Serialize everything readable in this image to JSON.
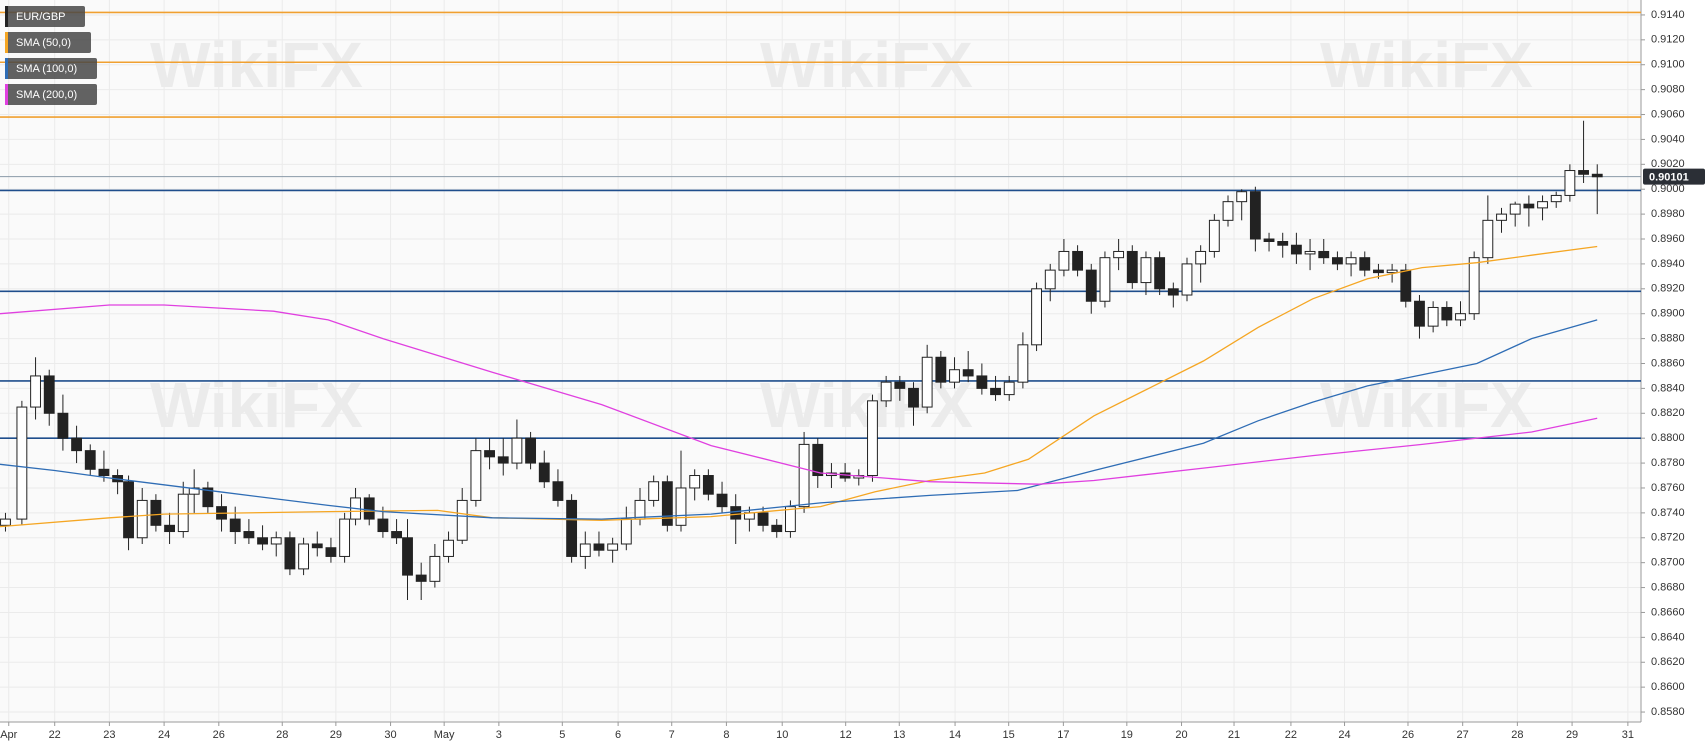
{
  "chart_data": {
    "type": "candlestick",
    "watermark": "WikiFX",
    "xlim": [
      0,
      30
    ],
    "xticks": [
      {
        "value": 0.16,
        "label": "Apr"
      },
      {
        "value": 1.0,
        "label": "22"
      },
      {
        "value": 2.0,
        "label": "23"
      },
      {
        "value": 3.0,
        "label": "24"
      },
      {
        "value": 4.0,
        "label": "26"
      },
      {
        "value": 5.16,
        "label": "28"
      },
      {
        "value": 6.14,
        "label": "29"
      },
      {
        "value": 7.14,
        "label": "30"
      },
      {
        "value": 8.12,
        "label": "May"
      },
      {
        "value": 9.12,
        "label": "3"
      },
      {
        "value": 10.28,
        "label": "5"
      },
      {
        "value": 11.3,
        "label": "6"
      },
      {
        "value": 12.28,
        "label": "7"
      },
      {
        "value": 13.28,
        "label": "8"
      },
      {
        "value": 14.3,
        "label": "10"
      },
      {
        "value": 15.46,
        "label": "12"
      },
      {
        "value": 16.44,
        "label": "13"
      },
      {
        "value": 17.46,
        "label": "14"
      },
      {
        "value": 18.44,
        "label": "15"
      },
      {
        "value": 19.44,
        "label": "17"
      },
      {
        "value": 20.6,
        "label": "19"
      },
      {
        "value": 21.6,
        "label": "20"
      },
      {
        "value": 22.56,
        "label": "21"
      },
      {
        "value": 23.6,
        "label": "22"
      },
      {
        "value": 24.58,
        "label": "24"
      },
      {
        "value": 25.74,
        "label": "26"
      },
      {
        "value": 26.74,
        "label": "27"
      },
      {
        "value": 27.74,
        "label": "28"
      },
      {
        "value": 28.74,
        "label": "29"
      },
      {
        "value": 29.76,
        "label": "31"
      }
    ],
    "ylim": [
      0.8572,
      0.9152
    ],
    "yticks": [
      {
        "value": 0.858,
        "label": "0.8580"
      },
      {
        "value": 0.86,
        "label": "0.8600"
      },
      {
        "value": 0.862,
        "label": "0.8620"
      },
      {
        "value": 0.864,
        "label": "0.8640"
      },
      {
        "value": 0.866,
        "label": "0.8660"
      },
      {
        "value": 0.868,
        "label": "0.8680"
      },
      {
        "value": 0.87,
        "label": "0.8700"
      },
      {
        "value": 0.872,
        "label": "0.8720"
      },
      {
        "value": 0.874,
        "label": "0.8740"
      },
      {
        "value": 0.876,
        "label": "0.8760"
      },
      {
        "value": 0.878,
        "label": "0.8780"
      },
      {
        "value": 0.88,
        "label": "0.8800"
      },
      {
        "value": 0.882,
        "label": "0.8820"
      },
      {
        "value": 0.884,
        "label": "0.8840"
      },
      {
        "value": 0.886,
        "label": "0.8860"
      },
      {
        "value": 0.888,
        "label": "0.8880"
      },
      {
        "value": 0.89,
        "label": "0.8900"
      },
      {
        "value": 0.892,
        "label": "0.8920"
      },
      {
        "value": 0.894,
        "label": "0.8940"
      },
      {
        "value": 0.896,
        "label": "0.8960"
      },
      {
        "value": 0.898,
        "label": "0.8980"
      },
      {
        "value": 0.9,
        "label": "0.9000"
      },
      {
        "value": 0.902,
        "label": "0.9020"
      },
      {
        "value": 0.904,
        "label": "0.9040"
      },
      {
        "value": 0.906,
        "label": "0.9060"
      },
      {
        "value": 0.908,
        "label": "0.9080"
      },
      {
        "value": 0.91,
        "label": "0.9100"
      },
      {
        "value": 0.912,
        "label": "0.9120"
      },
      {
        "value": 0.914,
        "label": "0.9140"
      }
    ],
    "grid": true,
    "levels": [
      {
        "value": 0.9142,
        "color": "#f0a030"
      },
      {
        "value": 0.9102,
        "color": "#f0a030"
      },
      {
        "value": 0.9058,
        "color": "#f0a030"
      },
      {
        "value": 0.8999,
        "color": "#1f4e8c"
      },
      {
        "value": 0.8918,
        "color": "#1f4e8c"
      },
      {
        "value": 0.8846,
        "color": "#1f4e8c"
      },
      {
        "value": 0.88,
        "color": "#1f4e8c"
      }
    ],
    "last_price": 0.90101,
    "series": [
      {
        "name": "EUR/GBP",
        "type": "candlestick",
        "color": "#222222",
        "x": [
          0.1,
          0.4,
          0.65,
          0.9,
          1.15,
          1.4,
          1.65,
          1.9,
          2.15,
          2.35,
          2.6,
          2.85,
          3.1,
          3.35,
          3.55,
          3.8,
          4.05,
          4.3,
          4.55,
          4.8,
          5.05,
          5.3,
          5.55,
          5.8,
          6.05,
          6.3,
          6.5,
          6.75,
          7.0,
          7.25,
          7.45,
          7.7,
          7.95,
          8.2,
          8.45,
          8.7,
          8.95,
          9.2,
          9.45,
          9.7,
          9.95,
          10.2,
          10.45,
          10.7,
          10.95,
          11.2,
          11.45,
          11.7,
          11.95,
          12.2,
          12.45,
          12.7,
          12.95,
          13.2,
          13.45,
          13.7,
          13.95,
          14.2,
          14.45,
          14.7,
          14.95,
          15.2,
          15.45,
          15.7,
          15.95,
          16.2,
          16.45,
          16.7,
          16.95,
          17.2,
          17.45,
          17.7,
          17.95,
          18.2,
          18.45,
          18.7,
          18.95,
          19.2,
          19.45,
          19.7,
          19.95,
          20.2,
          20.45,
          20.7,
          20.95,
          21.2,
          21.45,
          21.7,
          21.95,
          22.2,
          22.45,
          22.7,
          22.95,
          23.2,
          23.45,
          23.7,
          23.95,
          24.2,
          24.45,
          24.7,
          24.95,
          25.2,
          25.45,
          25.7,
          25.95,
          26.2,
          26.45,
          26.7,
          26.95,
          27.2,
          27.45,
          27.7,
          27.95,
          28.2,
          28.45,
          28.7,
          28.95,
          29.2
        ],
        "open": [
          0.873,
          0.8735,
          0.8825,
          0.885,
          0.882,
          0.88,
          0.879,
          0.8775,
          0.877,
          0.8765,
          0.872,
          0.875,
          0.873,
          0.8725,
          0.8755,
          0.876,
          0.8745,
          0.8735,
          0.8725,
          0.872,
          0.8715,
          0.872,
          0.8695,
          0.8715,
          0.8712,
          0.8705,
          0.8735,
          0.8752,
          0.8735,
          0.8725,
          0.872,
          0.869,
          0.8685,
          0.8705,
          0.8718,
          0.875,
          0.879,
          0.8785,
          0.878,
          0.88,
          0.878,
          0.8765,
          0.875,
          0.8705,
          0.8715,
          0.871,
          0.8715,
          0.8735,
          0.875,
          0.8765,
          0.873,
          0.876,
          0.877,
          0.8755,
          0.8745,
          0.8735,
          0.874,
          0.873,
          0.8725,
          0.8745,
          0.8795,
          0.877,
          0.8772,
          0.8768,
          0.877,
          0.883,
          0.8845,
          0.884,
          0.8825,
          0.8865,
          0.8845,
          0.8855,
          0.885,
          0.884,
          0.8835,
          0.8845,
          0.8875,
          0.892,
          0.8935,
          0.895,
          0.8935,
          0.891,
          0.8945,
          0.895,
          0.8925,
          0.8945,
          0.892,
          0.8915,
          0.894,
          0.895,
          0.8975,
          0.899,
          0.8998,
          0.896,
          0.8958,
          0.8955,
          0.8948,
          0.895,
          0.8945,
          0.894,
          0.8945,
          0.8935,
          0.8933,
          0.8935,
          0.891,
          0.889,
          0.8905,
          0.8895,
          0.89,
          0.8945,
          0.8975,
          0.898,
          0.8988,
          0.8985,
          0.899,
          0.8995,
          0.9015,
          0.9012
        ],
        "high": [
          0.874,
          0.883,
          0.8865,
          0.8855,
          0.8835,
          0.881,
          0.8795,
          0.879,
          0.8775,
          0.877,
          0.876,
          0.8755,
          0.874,
          0.8765,
          0.8775,
          0.8765,
          0.8755,
          0.8745,
          0.8735,
          0.873,
          0.8725,
          0.8725,
          0.872,
          0.8725,
          0.872,
          0.874,
          0.876,
          0.8755,
          0.8745,
          0.8735,
          0.8735,
          0.87,
          0.8715,
          0.8725,
          0.876,
          0.88,
          0.88,
          0.88,
          0.8815,
          0.8805,
          0.879,
          0.8775,
          0.8755,
          0.8725,
          0.8725,
          0.872,
          0.8745,
          0.876,
          0.877,
          0.877,
          0.879,
          0.8775,
          0.8775,
          0.8765,
          0.8755,
          0.8745,
          0.8745,
          0.8735,
          0.875,
          0.8805,
          0.88,
          0.878,
          0.878,
          0.8775,
          0.8835,
          0.885,
          0.885,
          0.8845,
          0.8875,
          0.887,
          0.8865,
          0.887,
          0.886,
          0.885,
          0.885,
          0.8885,
          0.8925,
          0.894,
          0.896,
          0.8955,
          0.894,
          0.895,
          0.896,
          0.8955,
          0.895,
          0.895,
          0.8925,
          0.8945,
          0.8955,
          0.898,
          0.8995,
          0.9,
          0.9002,
          0.8965,
          0.8965,
          0.8965,
          0.896,
          0.896,
          0.895,
          0.895,
          0.895,
          0.894,
          0.894,
          0.894,
          0.8915,
          0.891,
          0.891,
          0.891,
          0.895,
          0.8995,
          0.8985,
          0.899,
          0.8995,
          0.8995,
          0.8998,
          0.902,
          0.9055,
          0.902
        ],
        "low": [
          0.8725,
          0.873,
          0.8815,
          0.881,
          0.879,
          0.878,
          0.877,
          0.8765,
          0.8755,
          0.871,
          0.8715,
          0.8725,
          0.8715,
          0.872,
          0.874,
          0.874,
          0.8725,
          0.8715,
          0.8715,
          0.871,
          0.8705,
          0.869,
          0.869,
          0.8705,
          0.87,
          0.87,
          0.873,
          0.873,
          0.872,
          0.8715,
          0.867,
          0.867,
          0.868,
          0.87,
          0.8715,
          0.8745,
          0.8775,
          0.877,
          0.8775,
          0.8775,
          0.876,
          0.8745,
          0.87,
          0.8695,
          0.8705,
          0.87,
          0.871,
          0.873,
          0.8745,
          0.8725,
          0.8725,
          0.875,
          0.875,
          0.874,
          0.8715,
          0.8725,
          0.8725,
          0.872,
          0.872,
          0.874,
          0.876,
          0.876,
          0.8765,
          0.8762,
          0.8765,
          0.8825,
          0.883,
          0.881,
          0.882,
          0.884,
          0.884,
          0.8845,
          0.8835,
          0.883,
          0.883,
          0.884,
          0.887,
          0.891,
          0.893,
          0.893,
          0.89,
          0.8905,
          0.8935,
          0.892,
          0.8915,
          0.8915,
          0.8905,
          0.891,
          0.8925,
          0.8945,
          0.897,
          0.8975,
          0.895,
          0.895,
          0.8945,
          0.894,
          0.8935,
          0.894,
          0.8935,
          0.893,
          0.893,
          0.8928,
          0.8925,
          0.8905,
          0.888,
          0.8885,
          0.889,
          0.889,
          0.8895,
          0.894,
          0.8965,
          0.897,
          0.897,
          0.8975,
          0.8985,
          0.899,
          0.9005,
          0.898
        ],
        "close": [
          0.8735,
          0.8825,
          0.885,
          0.882,
          0.88,
          0.879,
          0.8775,
          0.877,
          0.8765,
          0.872,
          0.875,
          0.873,
          0.8725,
          0.8755,
          0.876,
          0.8745,
          0.8735,
          0.8725,
          0.872,
          0.8715,
          0.872,
          0.8695,
          0.8715,
          0.8712,
          0.8705,
          0.8735,
          0.8752,
          0.8735,
          0.8725,
          0.872,
          0.869,
          0.8685,
          0.8705,
          0.8718,
          0.875,
          0.879,
          0.8785,
          0.878,
          0.88,
          0.878,
          0.8765,
          0.875,
          0.8705,
          0.8715,
          0.871,
          0.8715,
          0.8735,
          0.875,
          0.8765,
          0.873,
          0.876,
          0.877,
          0.8755,
          0.8745,
          0.8735,
          0.874,
          0.873,
          0.8725,
          0.8745,
          0.8795,
          0.877,
          0.8772,
          0.8768,
          0.877,
          0.883,
          0.8845,
          0.884,
          0.8825,
          0.8865,
          0.8845,
          0.8855,
          0.885,
          0.884,
          0.8835,
          0.8845,
          0.8875,
          0.892,
          0.8935,
          0.895,
          0.8935,
          0.891,
          0.8945,
          0.895,
          0.8925,
          0.8945,
          0.892,
          0.8915,
          0.894,
          0.895,
          0.8975,
          0.899,
          0.8998,
          0.896,
          0.8958,
          0.8955,
          0.8948,
          0.895,
          0.8945,
          0.894,
          0.8945,
          0.8935,
          0.8933,
          0.8935,
          0.891,
          0.889,
          0.8905,
          0.8895,
          0.89,
          0.8945,
          0.8975,
          0.898,
          0.8988,
          0.8985,
          0.899,
          0.8995,
          0.9015,
          0.9012,
          0.901
        ]
      },
      {
        "name": "SMA (50,0)",
        "type": "line",
        "color": "#f5a623",
        "x": [
          0,
          2,
          3,
          6,
          8,
          9,
          11,
          13,
          15,
          16,
          17,
          18,
          18.8,
          20,
          21,
          22,
          23,
          24,
          25,
          26,
          27,
          28,
          29.2
        ],
        "values": [
          0.8729,
          0.8736,
          0.8739,
          0.8741,
          0.8742,
          0.8736,
          0.8734,
          0.8737,
          0.8745,
          0.8757,
          0.8766,
          0.8772,
          0.8783,
          0.8818,
          0.884,
          0.8862,
          0.8889,
          0.8912,
          0.8928,
          0.8937,
          0.8941,
          0.8947,
          0.8954
        ]
      },
      {
        "name": "SMA (100,0)",
        "type": "line",
        "color": "#2f6db5",
        "x": [
          0,
          1,
          2,
          4,
          6,
          7,
          9,
          11,
          13,
          15,
          17,
          18.6,
          20,
          22,
          23,
          24,
          25,
          26,
          27,
          28,
          29.2
        ],
        "values": [
          0.8779,
          0.8774,
          0.8768,
          0.8757,
          0.8746,
          0.8741,
          0.8736,
          0.8735,
          0.8739,
          0.8748,
          0.8754,
          0.8758,
          0.8774,
          0.8796,
          0.8814,
          0.8829,
          0.8842,
          0.8851,
          0.886,
          0.888,
          0.8895
        ]
      },
      {
        "name": "SMA (200,0)",
        "type": "line",
        "color": "#e040e0",
        "x": [
          0,
          2,
          3,
          5,
          6,
          7,
          9,
          11,
          13,
          15,
          17,
          19,
          20,
          22,
          24,
          26,
          28,
          29.2
        ],
        "values": [
          0.89,
          0.8907,
          0.8907,
          0.8902,
          0.8895,
          0.888,
          0.8853,
          0.8827,
          0.8794,
          0.8772,
          0.8765,
          0.8763,
          0.8766,
          0.8776,
          0.8786,
          0.8795,
          0.8805,
          0.8816
        ]
      }
    ]
  }
}
